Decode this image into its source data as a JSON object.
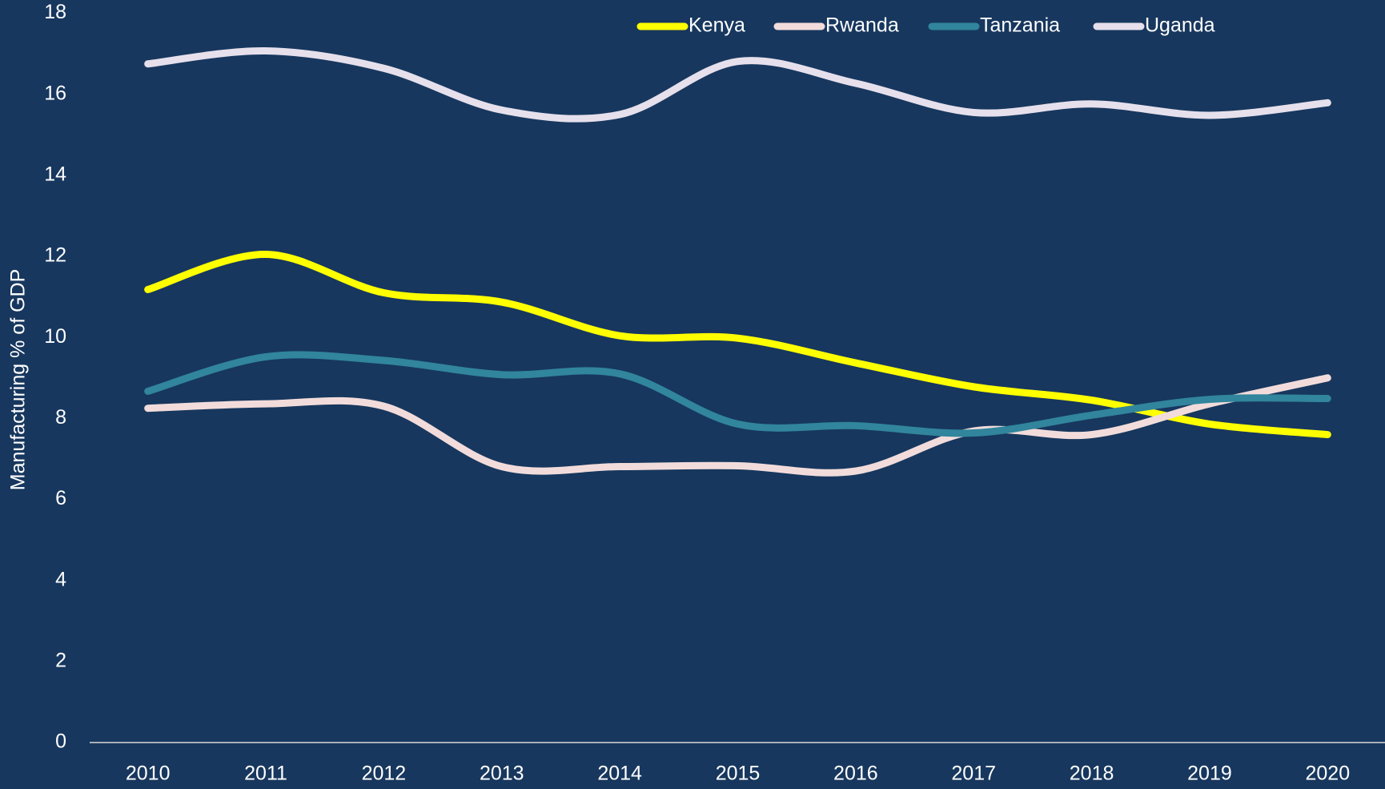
{
  "chart_data": {
    "type": "line",
    "y_label": "Manufacturing % of GDP",
    "categories": [
      "2010",
      "2011",
      "2012",
      "2013",
      "2014",
      "2015",
      "2016",
      "2017",
      "2018",
      "2019",
      "2020"
    ],
    "series": [
      {
        "name": "Kenya",
        "color": "#ffff00",
        "values": [
          11.18,
          12.05,
          11.1,
          10.87,
          10.04,
          9.98,
          9.37,
          8.78,
          8.45,
          7.86,
          7.6
        ]
      },
      {
        "name": "Rwanda",
        "color": "#f2dcdb",
        "values": [
          8.25,
          8.36,
          8.3,
          6.81,
          6.81,
          6.83,
          6.7,
          7.69,
          7.6,
          8.36,
          9.0
        ]
      },
      {
        "name": "Tanzania",
        "color": "#31859c",
        "values": [
          8.67,
          9.52,
          9.43,
          9.08,
          9.1,
          7.86,
          7.82,
          7.64,
          8.08,
          8.47,
          8.49
        ]
      },
      {
        "name": "Uganda",
        "color": "#e6e0ec",
        "values": [
          16.75,
          17.07,
          16.64,
          15.61,
          15.5,
          16.81,
          16.27,
          15.55,
          15.76,
          15.48,
          15.79
        ]
      }
    ],
    "ylim": [
      0,
      18
    ],
    "yticks": [
      0,
      2,
      4,
      6,
      8,
      10,
      12,
      14,
      16,
      18
    ],
    "smooth": true,
    "legend": "top"
  }
}
